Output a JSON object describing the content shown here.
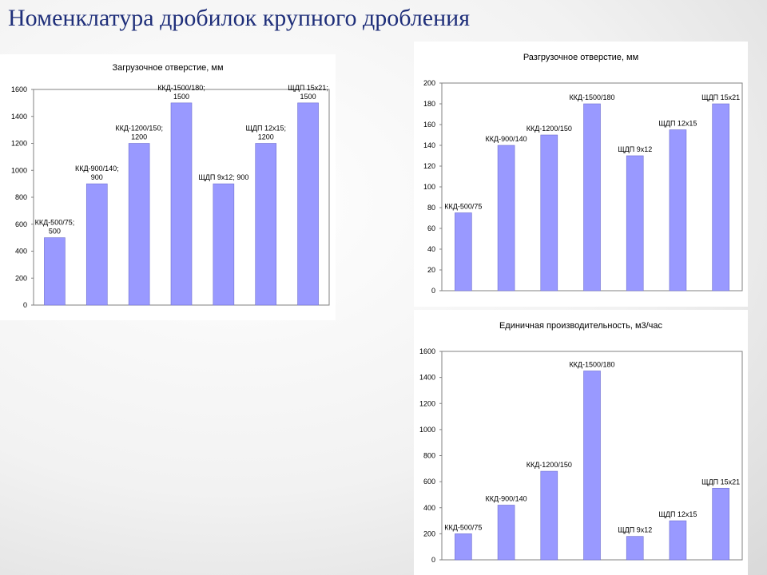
{
  "slide": {
    "title": "Номенклатура дробилок крупного дробления"
  },
  "colors": {
    "bar": "#9999ff",
    "bar_stroke": "#6f6fd0",
    "title": "#1f2f7a"
  },
  "chart_data": [
    {
      "type": "bar",
      "title": "Загрузочное отверстие, мм",
      "categories": [
        "ККД-500/75",
        "ККД-900/140",
        "ККД-1200/150",
        "ККД-1500/180",
        "ЩДП 9х12",
        "ЩДП 12х15",
        "ЩДП 15х21"
      ],
      "values": [
        500,
        900,
        1200,
        1500,
        900,
        1200,
        1500
      ],
      "ylim": [
        0,
        1600
      ],
      "yticks": [
        "0",
        "200",
        "400",
        "600",
        "800",
        "1000",
        "1200",
        "1400",
        "1600"
      ],
      "data_labels": [
        [
          "ККД-500/75;",
          "500"
        ],
        [
          "ККД-900/140;",
          "900"
        ],
        [
          "ККД-1200/150;",
          "1200"
        ],
        [
          "ККД-1500/180;",
          "1500"
        ],
        [
          "ЩДП 9х12; 900"
        ],
        [
          "ЩДП 12х15;",
          "1200"
        ],
        [
          "ЩДП 15х21;",
          "1500"
        ]
      ]
    },
    {
      "type": "bar",
      "title": "Разгрузочное отверстие, мм",
      "categories": [
        "ККД-500/75",
        "ККД-900/140",
        "ККД-1200/150",
        "ККД-1500/180",
        "ЩДП 9х12",
        "ЩДП 12х15",
        "ЩДП 15х21"
      ],
      "values": [
        75,
        140,
        150,
        180,
        130,
        155,
        180
      ],
      "ylim": [
        0,
        200
      ],
      "yticks": [
        "0",
        "20",
        "40",
        "60",
        "80",
        "100",
        "120",
        "140",
        "160",
        "180",
        "200"
      ],
      "data_labels": [
        [
          "ККД-500/75"
        ],
        [
          "ККД-900/140"
        ],
        [
          "ККД-1200/150"
        ],
        [
          "ККД-1500/180"
        ],
        [
          "ЩДП 9х12"
        ],
        [
          "ЩДП 12х15"
        ],
        [
          "ЩДП 15х21"
        ]
      ]
    },
    {
      "type": "bar",
      "title": "Единичная производительность, м3/час",
      "categories": [
        "ККД-500/75",
        "ККД-900/140",
        "ККД-1200/150",
        "ККД-1500/180",
        "ЩДП 9х12",
        "ЩДП 12х15",
        "ЩДП 15х21"
      ],
      "values": [
        200,
        420,
        680,
        1450,
        180,
        300,
        550
      ],
      "ylim": [
        0,
        1600
      ],
      "yticks": [
        "0",
        "200",
        "400",
        "600",
        "800",
        "1000",
        "1200",
        "1400",
        "1600"
      ],
      "data_labels": [
        [
          "ККД-500/75"
        ],
        [
          "ККД-900/140"
        ],
        [
          "ККД-1200/150"
        ],
        [
          "ККД-1500/180"
        ],
        [
          "ЩДП 9х12"
        ],
        [
          "ЩДП 12х15"
        ],
        [
          "ЩДП 15х21"
        ]
      ]
    }
  ]
}
